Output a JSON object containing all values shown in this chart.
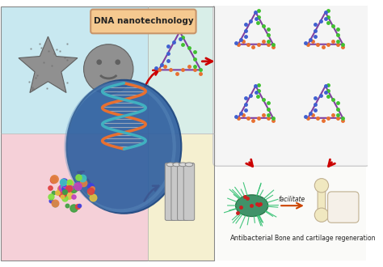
{
  "title": "DNA nanotechnology",
  "title_bg": "#f5c990",
  "title_border": "#c8956a",
  "bg_top_left": "#c8e8f0",
  "bg_top_right": "#d8eee8",
  "bg_bottom_left": "#f5d0d8",
  "bg_bottom_right": "#f5f0d0",
  "right_panel_bg": "#f5f5f5",
  "right_panel_border": "#cccccc",
  "bottom_right_bg": "#fafaf8",
  "antibacterial_label": "Antibacterial",
  "bone_label": "Bone and cartilage regeneration",
  "facilitate_label": "facilitate",
  "arrow_color": "#cc0000",
  "facilitate_arrow_color": "#cc4400",
  "star_color": "#a0a0a0",
  "smiley_color": "#a0a0a0",
  "dna_helix_color1": "#e87030",
  "dna_helix_color2": "#40b0c0",
  "globe_bg": "#3060a0",
  "globe_highlight": "#5080b0"
}
